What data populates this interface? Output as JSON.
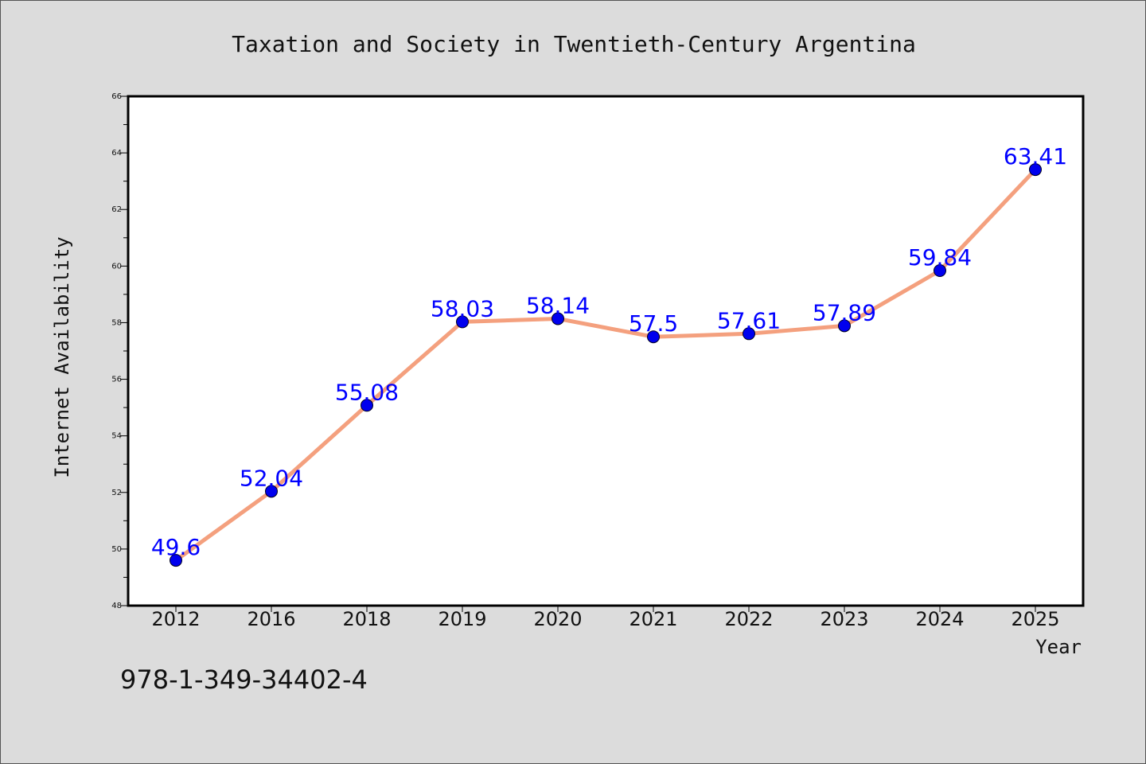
{
  "chart_data": {
    "type": "line",
    "title": "Taxation and Society in Twentieth-Century Argentina",
    "xlabel": "Year",
    "ylabel": "Internet Availability",
    "categories": [
      "2012",
      "2016",
      "2018",
      "2019",
      "2020",
      "2021",
      "2022",
      "2023",
      "2024",
      "2025"
    ],
    "series": [
      {
        "values": [
          49.6,
          52.04,
          55.08,
          58.03,
          58.14,
          57.5,
          57.61,
          57.89,
          59.84,
          63.41
        ]
      }
    ],
    "data_labels": [
      "49.6",
      "52.04",
      "55.08",
      "58.03",
      "58.14",
      "57.5",
      "57.61",
      "57.89",
      "59.84",
      "63.41"
    ],
    "ylim": [
      48,
      66
    ],
    "yticks": [
      "48",
      "50",
      "52",
      "54",
      "56",
      "58",
      "60",
      "62",
      "64",
      "66"
    ],
    "grid": false,
    "line_color": "#f4a07e",
    "marker_color": "#0000ee",
    "label_color": "#0000ff"
  },
  "footer_code": "978-1-349-34402-4"
}
